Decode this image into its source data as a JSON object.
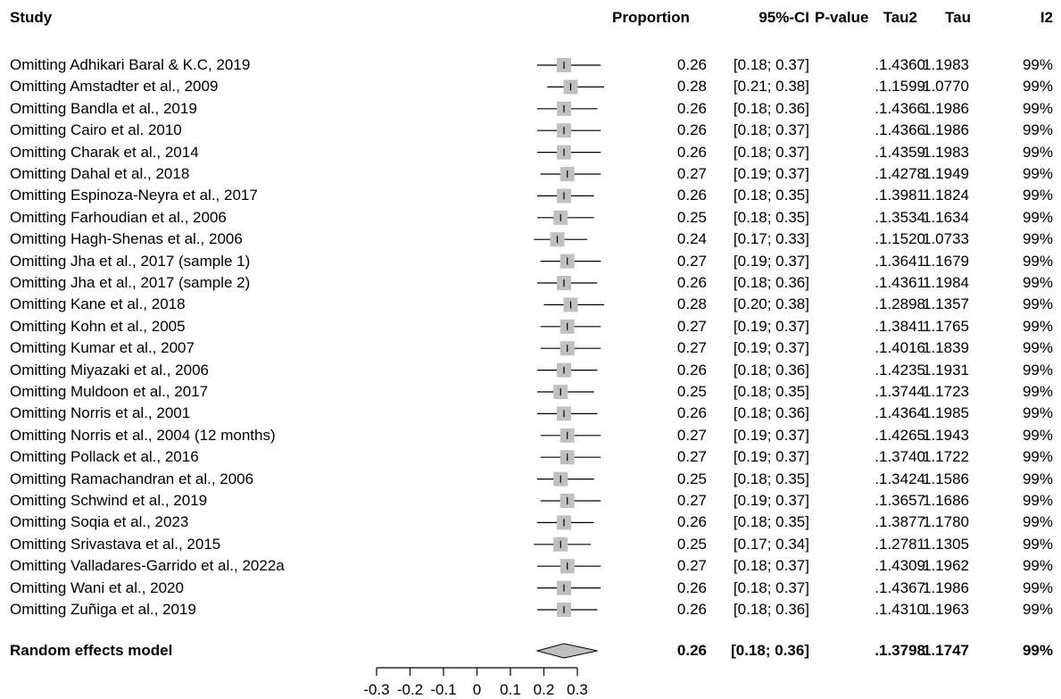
{
  "headers": {
    "study": "Study",
    "proportion": "Proportion",
    "ci": "95%-CI",
    "pvalue": "P-value",
    "tau2": "Tau2",
    "tau": "Tau",
    "i2": "I2"
  },
  "chart_data": {
    "type": "forest",
    "xticks": [
      -0.3,
      -0.2,
      -0.1,
      0,
      0.1,
      0.2,
      0.3
    ],
    "xtick_labels": [
      "-0.3",
      "-0.2",
      "-0.1",
      "0",
      "0.1",
      "0.2",
      "0.3"
    ],
    "xlim": [
      -0.3,
      0.3
    ],
    "studies": [
      {
        "label": "Omitting Adhikari Baral & K.C, 2019",
        "proportion": "0.26",
        "ci": "[0.18; 0.37]",
        "pvalue": ".",
        "tau2": "1.4360",
        "tau": "1.1983",
        "i2": "99%",
        "est": 0.26,
        "lo": 0.18,
        "hi": 0.37
      },
      {
        "label": "Omitting Amstadter et al., 2009",
        "proportion": "0.28",
        "ci": "[0.21; 0.38]",
        "pvalue": ".",
        "tau2": "1.1599",
        "tau": "1.0770",
        "i2": "99%",
        "est": 0.28,
        "lo": 0.21,
        "hi": 0.38
      },
      {
        "label": "Omitting Bandla et al., 2019",
        "proportion": "0.26",
        "ci": "[0.18; 0.36]",
        "pvalue": ".",
        "tau2": "1.4366",
        "tau": "1.1986",
        "i2": "99%",
        "est": 0.26,
        "lo": 0.18,
        "hi": 0.36
      },
      {
        "label": "Omitting Cairo et al. 2010",
        "proportion": "0.26",
        "ci": "[0.18; 0.37]",
        "pvalue": ".",
        "tau2": "1.4366",
        "tau": "1.1986",
        "i2": "99%",
        "est": 0.26,
        "lo": 0.18,
        "hi": 0.37
      },
      {
        "label": "Omitting Charak et al., 2014",
        "proportion": "0.26",
        "ci": "[0.18; 0.37]",
        "pvalue": ".",
        "tau2": "1.4359",
        "tau": "1.1983",
        "i2": "99%",
        "est": 0.26,
        "lo": 0.18,
        "hi": 0.37
      },
      {
        "label": "Omitting Dahal et al., 2018",
        "proportion": "0.27",
        "ci": "[0.19; 0.37]",
        "pvalue": ".",
        "tau2": "1.4278",
        "tau": "1.1949",
        "i2": "99%",
        "est": 0.27,
        "lo": 0.19,
        "hi": 0.37
      },
      {
        "label": "Omitting Espinoza-Neyra et al., 2017",
        "proportion": "0.26",
        "ci": "[0.18; 0.35]",
        "pvalue": ".",
        "tau2": "1.3981",
        "tau": "1.1824",
        "i2": "99%",
        "est": 0.26,
        "lo": 0.18,
        "hi": 0.35
      },
      {
        "label": "Omitting Farhoudian et al., 2006",
        "proportion": "0.25",
        "ci": "[0.18; 0.35]",
        "pvalue": ".",
        "tau2": "1.3534",
        "tau": "1.1634",
        "i2": "99%",
        "est": 0.25,
        "lo": 0.18,
        "hi": 0.35
      },
      {
        "label": "Omitting Hagh-Shenas et al., 2006",
        "proportion": "0.24",
        "ci": "[0.17; 0.33]",
        "pvalue": ".",
        "tau2": "1.1520",
        "tau": "1.0733",
        "i2": "99%",
        "est": 0.24,
        "lo": 0.17,
        "hi": 0.33
      },
      {
        "label": "Omitting Jha et al., 2017 (sample 1)",
        "proportion": "0.27",
        "ci": "[0.19; 0.37]",
        "pvalue": ".",
        "tau2": "1.3641",
        "tau": "1.1679",
        "i2": "99%",
        "est": 0.27,
        "lo": 0.19,
        "hi": 0.37
      },
      {
        "label": "Omitting Jha et al., 2017 (sample 2)",
        "proportion": "0.26",
        "ci": "[0.18; 0.36]",
        "pvalue": ".",
        "tau2": "1.4361",
        "tau": "1.1984",
        "i2": "99%",
        "est": 0.26,
        "lo": 0.18,
        "hi": 0.36
      },
      {
        "label": "Omitting Kane et al., 2018",
        "proportion": "0.28",
        "ci": "[0.20; 0.38]",
        "pvalue": ".",
        "tau2": "1.2898",
        "tau": "1.1357",
        "i2": "99%",
        "est": 0.28,
        "lo": 0.2,
        "hi": 0.38
      },
      {
        "label": "Omitting Kohn et al., 2005",
        "proportion": "0.27",
        "ci": "[0.19; 0.37]",
        "pvalue": ".",
        "tau2": "1.3841",
        "tau": "1.1765",
        "i2": "99%",
        "est": 0.27,
        "lo": 0.19,
        "hi": 0.37
      },
      {
        "label": "Omitting Kumar et al., 2007",
        "proportion": "0.27",
        "ci": "[0.19; 0.37]",
        "pvalue": ".",
        "tau2": "1.4016",
        "tau": "1.1839",
        "i2": "99%",
        "est": 0.27,
        "lo": 0.19,
        "hi": 0.37
      },
      {
        "label": "Omitting Miyazaki et al., 2006",
        "proportion": "0.26",
        "ci": "[0.18; 0.36]",
        "pvalue": ".",
        "tau2": "1.4235",
        "tau": "1.1931",
        "i2": "99%",
        "est": 0.26,
        "lo": 0.18,
        "hi": 0.36
      },
      {
        "label": "Omitting Muldoon et al., 2017",
        "proportion": "0.25",
        "ci": "[0.18; 0.35]",
        "pvalue": ".",
        "tau2": "1.3744",
        "tau": "1.1723",
        "i2": "99%",
        "est": 0.25,
        "lo": 0.18,
        "hi": 0.35
      },
      {
        "label": "Omitting Norris et al., 2001",
        "proportion": "0.26",
        "ci": "[0.18; 0.36]",
        "pvalue": ".",
        "tau2": "1.4364",
        "tau": "1.1985",
        "i2": "99%",
        "est": 0.26,
        "lo": 0.18,
        "hi": 0.36
      },
      {
        "label": "Omitting Norris et al., 2004 (12 months)",
        "proportion": "0.27",
        "ci": "[0.19; 0.37]",
        "pvalue": ".",
        "tau2": "1.4265",
        "tau": "1.1943",
        "i2": "99%",
        "est": 0.27,
        "lo": 0.19,
        "hi": 0.37
      },
      {
        "label": "Omitting Pollack et al., 2016",
        "proportion": "0.27",
        "ci": "[0.19; 0.37]",
        "pvalue": ".",
        "tau2": "1.3740",
        "tau": "1.1722",
        "i2": "99%",
        "est": 0.27,
        "lo": 0.19,
        "hi": 0.37
      },
      {
        "label": "Omitting Ramachandran et al., 2006",
        "proportion": "0.25",
        "ci": "[0.18; 0.35]",
        "pvalue": ".",
        "tau2": "1.3424",
        "tau": "1.1586",
        "i2": "99%",
        "est": 0.25,
        "lo": 0.18,
        "hi": 0.35
      },
      {
        "label": "Omitting Schwind et al., 2019",
        "proportion": "0.27",
        "ci": "[0.19; 0.37]",
        "pvalue": ".",
        "tau2": "1.3657",
        "tau": "1.1686",
        "i2": "99%",
        "est": 0.27,
        "lo": 0.19,
        "hi": 0.37
      },
      {
        "label": "Omitting Soqia et al., 2023",
        "proportion": "0.26",
        "ci": "[0.18; 0.35]",
        "pvalue": ".",
        "tau2": "1.3877",
        "tau": "1.1780",
        "i2": "99%",
        "est": 0.26,
        "lo": 0.18,
        "hi": 0.35
      },
      {
        "label": "Omitting Srivastava et al., 2015",
        "proportion": "0.25",
        "ci": "[0.17; 0.34]",
        "pvalue": ".",
        "tau2": "1.2781",
        "tau": "1.1305",
        "i2": "99%",
        "est": 0.25,
        "lo": 0.17,
        "hi": 0.34
      },
      {
        "label": "Omitting Valladares-Garrido et al., 2022a",
        "proportion": "0.27",
        "ci": "[0.18; 0.37]",
        "pvalue": ".",
        "tau2": "1.4309",
        "tau": "1.1962",
        "i2": "99%",
        "est": 0.27,
        "lo": 0.18,
        "hi": 0.37
      },
      {
        "label": "Omitting Wani et al., 2020",
        "proportion": "0.26",
        "ci": "[0.18; 0.37]",
        "pvalue": ".",
        "tau2": "1.4367",
        "tau": "1.1986",
        "i2": "99%",
        "est": 0.26,
        "lo": 0.18,
        "hi": 0.37
      },
      {
        "label": "Omitting Zuñiga et al., 2019",
        "proportion": "0.26",
        "ci": "[0.18; 0.36]",
        "pvalue": ".",
        "tau2": "1.4310",
        "tau": "1.1963",
        "i2": "99%",
        "est": 0.26,
        "lo": 0.18,
        "hi": 0.36
      }
    ],
    "summary": {
      "label": "Random effects model",
      "proportion": "0.26",
      "ci": "[0.18; 0.36]",
      "pvalue": ".",
      "tau2": "1.3798",
      "tau": "1.1747",
      "i2": "99%",
      "est": 0.26,
      "lo": 0.18,
      "hi": 0.36
    },
    "colors": {
      "box": "#c0c0c0",
      "diamond": "#bebebe",
      "line": "#000000"
    }
  }
}
